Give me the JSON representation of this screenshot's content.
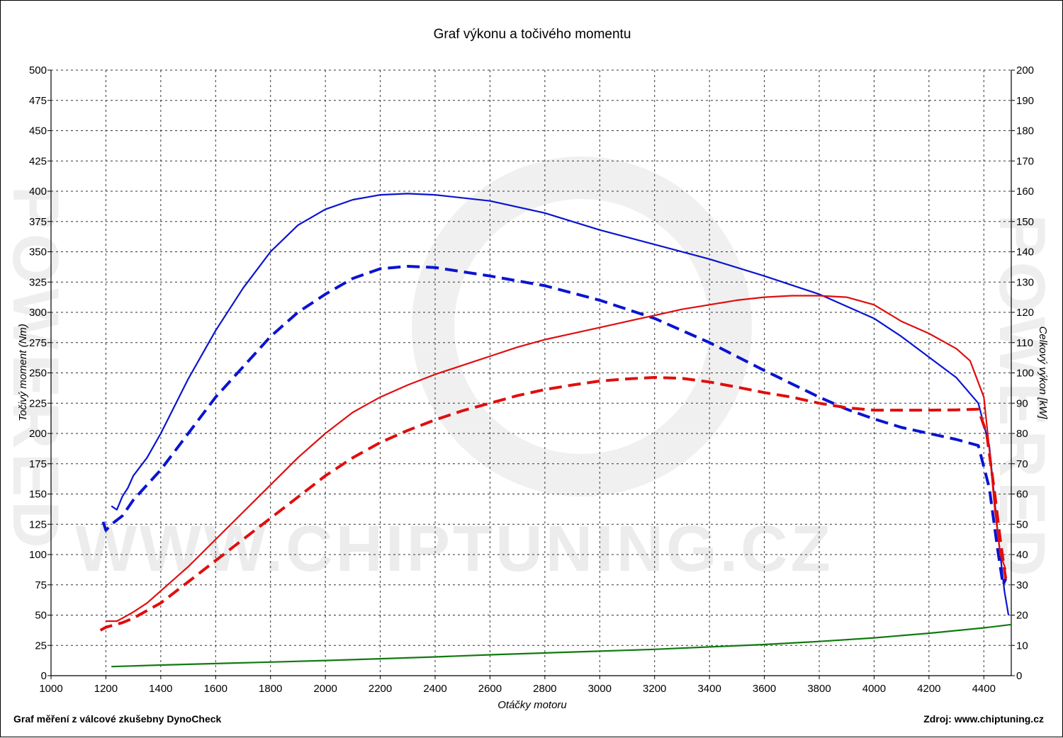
{
  "chart_data": {
    "type": "line",
    "title": "Graf výkonu a točivého momentu",
    "xlabel": "Otáčky motoru",
    "ylabel_left": "Točivý moment (Nm)",
    "ylabel_right": "Celkový výkon [kW]",
    "xlim": [
      1000,
      4500
    ],
    "ylim_left": [
      0,
      500
    ],
    "ylim_right": [
      0,
      200
    ],
    "x_ticks": [
      1000,
      1200,
      1400,
      1600,
      1800,
      2000,
      2200,
      2400,
      2600,
      2800,
      3000,
      3200,
      3400,
      3600,
      3800,
      4000,
      4200,
      4400
    ],
    "y_ticks_left": [
      0,
      25,
      50,
      75,
      100,
      125,
      150,
      175,
      200,
      225,
      250,
      275,
      300,
      325,
      350,
      375,
      400,
      425,
      450,
      475,
      500
    ],
    "y_ticks_right": [
      0,
      10,
      20,
      30,
      40,
      50,
      60,
      70,
      80,
      90,
      100,
      110,
      120,
      130,
      140,
      150,
      160,
      170,
      180,
      190,
      200
    ],
    "grid": true,
    "series": [
      {
        "axis": "left",
        "color": "#0a14d0",
        "style": "solid",
        "points": [
          [
            1220,
            140
          ],
          [
            1240,
            137
          ],
          [
            1260,
            148
          ],
          [
            1280,
            155
          ],
          [
            1300,
            165
          ],
          [
            1350,
            180
          ],
          [
            1400,
            200
          ],
          [
            1500,
            245
          ],
          [
            1600,
            285
          ],
          [
            1700,
            320
          ],
          [
            1800,
            350
          ],
          [
            1900,
            372
          ],
          [
            2000,
            385
          ],
          [
            2100,
            393
          ],
          [
            2200,
            397
          ],
          [
            2300,
            398
          ],
          [
            2400,
            397
          ],
          [
            2600,
            392
          ],
          [
            2800,
            382
          ],
          [
            3000,
            368
          ],
          [
            3200,
            356
          ],
          [
            3400,
            344
          ],
          [
            3600,
            330
          ],
          [
            3800,
            315
          ],
          [
            4000,
            295
          ],
          [
            4100,
            280
          ],
          [
            4200,
            263
          ],
          [
            4300,
            246
          ],
          [
            4380,
            225
          ],
          [
            4420,
            190
          ],
          [
            4450,
            120
          ],
          [
            4475,
            70
          ],
          [
            4490,
            50
          ]
        ]
      },
      {
        "axis": "left",
        "color": "#0a14d0",
        "style": "dashed",
        "points": [
          [
            1190,
            127
          ],
          [
            1200,
            120
          ],
          [
            1220,
            125
          ],
          [
            1260,
            132
          ],
          [
            1300,
            145
          ],
          [
            1400,
            170
          ],
          [
            1500,
            200
          ],
          [
            1600,
            230
          ],
          [
            1700,
            255
          ],
          [
            1800,
            280
          ],
          [
            1900,
            300
          ],
          [
            2000,
            315
          ],
          [
            2100,
            328
          ],
          [
            2200,
            336
          ],
          [
            2300,
            338
          ],
          [
            2400,
            337
          ],
          [
            2600,
            330
          ],
          [
            2800,
            322
          ],
          [
            3000,
            310
          ],
          [
            3200,
            295
          ],
          [
            3400,
            275
          ],
          [
            3600,
            252
          ],
          [
            3800,
            230
          ],
          [
            3900,
            220
          ],
          [
            4000,
            212
          ],
          [
            4100,
            205
          ],
          [
            4200,
            200
          ],
          [
            4300,
            195
          ],
          [
            4380,
            190
          ],
          [
            4420,
            155
          ],
          [
            4450,
            105
          ],
          [
            4470,
            75
          ],
          [
            4480,
            80
          ]
        ]
      },
      {
        "axis": "right",
        "color": "#e00e0e",
        "style": "solid",
        "points": [
          [
            1200,
            18
          ],
          [
            1220,
            18
          ],
          [
            1240,
            18
          ],
          [
            1260,
            19
          ],
          [
            1300,
            21
          ],
          [
            1350,
            24
          ],
          [
            1400,
            28
          ],
          [
            1500,
            36
          ],
          [
            1600,
            45
          ],
          [
            1700,
            54
          ],
          [
            1800,
            63
          ],
          [
            1900,
            72
          ],
          [
            2000,
            80
          ],
          [
            2100,
            87
          ],
          [
            2200,
            92
          ],
          [
            2300,
            96
          ],
          [
            2400,
            99.5
          ],
          [
            2500,
            102.5
          ],
          [
            2600,
            105.5
          ],
          [
            2700,
            108.5
          ],
          [
            2800,
            111
          ],
          [
            2900,
            113
          ],
          [
            3000,
            115
          ],
          [
            3100,
            117
          ],
          [
            3200,
            119
          ],
          [
            3300,
            121
          ],
          [
            3400,
            122.5
          ],
          [
            3500,
            124
          ],
          [
            3600,
            125
          ],
          [
            3700,
            125.5
          ],
          [
            3800,
            125.5
          ],
          [
            3900,
            125
          ],
          [
            4000,
            122.5
          ],
          [
            4100,
            117
          ],
          [
            4200,
            113
          ],
          [
            4300,
            108
          ],
          [
            4350,
            104
          ],
          [
            4400,
            92
          ],
          [
            4420,
            75
          ],
          [
            4440,
            55
          ],
          [
            4460,
            40
          ],
          [
            4480,
            35
          ]
        ]
      },
      {
        "axis": "right",
        "color": "#e00e0e",
        "style": "dashed",
        "points": [
          [
            1180,
            15
          ],
          [
            1200,
            16
          ],
          [
            1220,
            16.5
          ],
          [
            1260,
            17.5
          ],
          [
            1300,
            19
          ],
          [
            1400,
            24
          ],
          [
            1500,
            31
          ],
          [
            1600,
            38
          ],
          [
            1700,
            45
          ],
          [
            1800,
            52
          ],
          [
            1900,
            59
          ],
          [
            2000,
            66
          ],
          [
            2100,
            72
          ],
          [
            2200,
            77
          ],
          [
            2300,
            81
          ],
          [
            2400,
            84.5
          ],
          [
            2500,
            87.5
          ],
          [
            2600,
            90
          ],
          [
            2700,
            92.5
          ],
          [
            2800,
            94.5
          ],
          [
            2900,
            96
          ],
          [
            3000,
            97.3
          ],
          [
            3100,
            98
          ],
          [
            3200,
            98.5
          ],
          [
            3300,
            98.2
          ],
          [
            3400,
            97
          ],
          [
            3500,
            95.3
          ],
          [
            3600,
            93.5
          ],
          [
            3700,
            92
          ],
          [
            3800,
            90
          ],
          [
            3900,
            88.5
          ],
          [
            4000,
            87.7
          ],
          [
            4100,
            87.7
          ],
          [
            4200,
            87.7
          ],
          [
            4300,
            87.8
          ],
          [
            4380,
            88
          ],
          [
            4410,
            80
          ],
          [
            4440,
            60
          ],
          [
            4460,
            45
          ],
          [
            4475,
            35
          ],
          [
            4480,
            32
          ]
        ]
      },
      {
        "axis": "right",
        "color": "#117a11",
        "style": "solid",
        "points": [
          [
            1220,
            3
          ],
          [
            1400,
            3.5
          ],
          [
            1600,
            4
          ],
          [
            1800,
            4.5
          ],
          [
            2000,
            5
          ],
          [
            2200,
            5.6
          ],
          [
            2400,
            6.2
          ],
          [
            2600,
            6.9
          ],
          [
            2800,
            7.5
          ],
          [
            3000,
            8.1
          ],
          [
            3200,
            8.7
          ],
          [
            3400,
            9.5
          ],
          [
            3600,
            10.3
          ],
          [
            3800,
            11.3
          ],
          [
            4000,
            12.5
          ],
          [
            4200,
            14
          ],
          [
            4400,
            15.8
          ],
          [
            4500,
            16.9
          ]
        ]
      }
    ]
  },
  "footer": {
    "left": "Graf měření z válcové zkušebny DynoCheck",
    "right": "Zdroj: www.chiptuning.cz"
  },
  "watermark": {
    "center": "WWW.CHIPTUNING.CZ",
    "side": "POWERED"
  }
}
